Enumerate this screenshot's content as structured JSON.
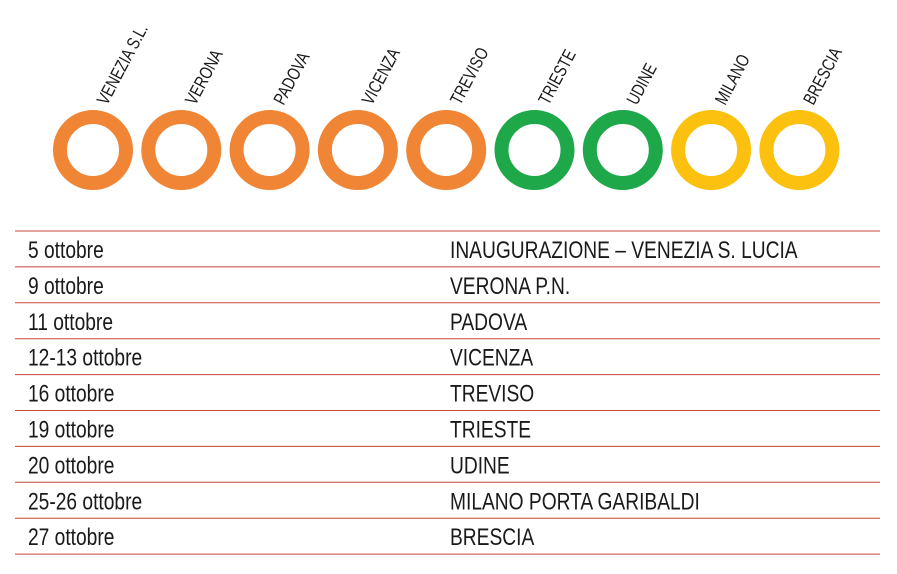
{
  "stations": [
    {
      "label": "VENEZIA S.L.",
      "color": "#f08536"
    },
    {
      "label": "VERONA",
      "color": "#f08536"
    },
    {
      "label": "PADOVA",
      "color": "#f08536"
    },
    {
      "label": "VICENZA",
      "color": "#f08536"
    },
    {
      "label": "TREVISO",
      "color": "#f08536"
    },
    {
      "label": "TRIESTE",
      "color": "#1ea84a"
    },
    {
      "label": "UDINE",
      "color": "#1ea84a"
    },
    {
      "label": "MILANO",
      "color": "#fcc10e"
    },
    {
      "label": "BRESCIA",
      "color": "#fcc10e"
    }
  ],
  "table": {
    "rows": [
      [
        "5 ottobre",
        "INAUGURAZIONE – VENEZIA S. LUCIA"
      ],
      [
        "9 ottobre",
        "VERONA P.N."
      ],
      [
        "11 ottobre",
        "PADOVA"
      ],
      [
        "12-13 ottobre",
        "VICENZA"
      ],
      [
        "16 ottobre",
        "TREVISO"
      ],
      [
        "19 ottobre",
        "TRIESTE"
      ],
      [
        "20 ottobre",
        "UDINE"
      ],
      [
        "25-26 ottobre",
        "MILANO PORTA GARIBALDI"
      ],
      [
        "27 ottobre",
        "BRESCIA"
      ]
    ]
  }
}
